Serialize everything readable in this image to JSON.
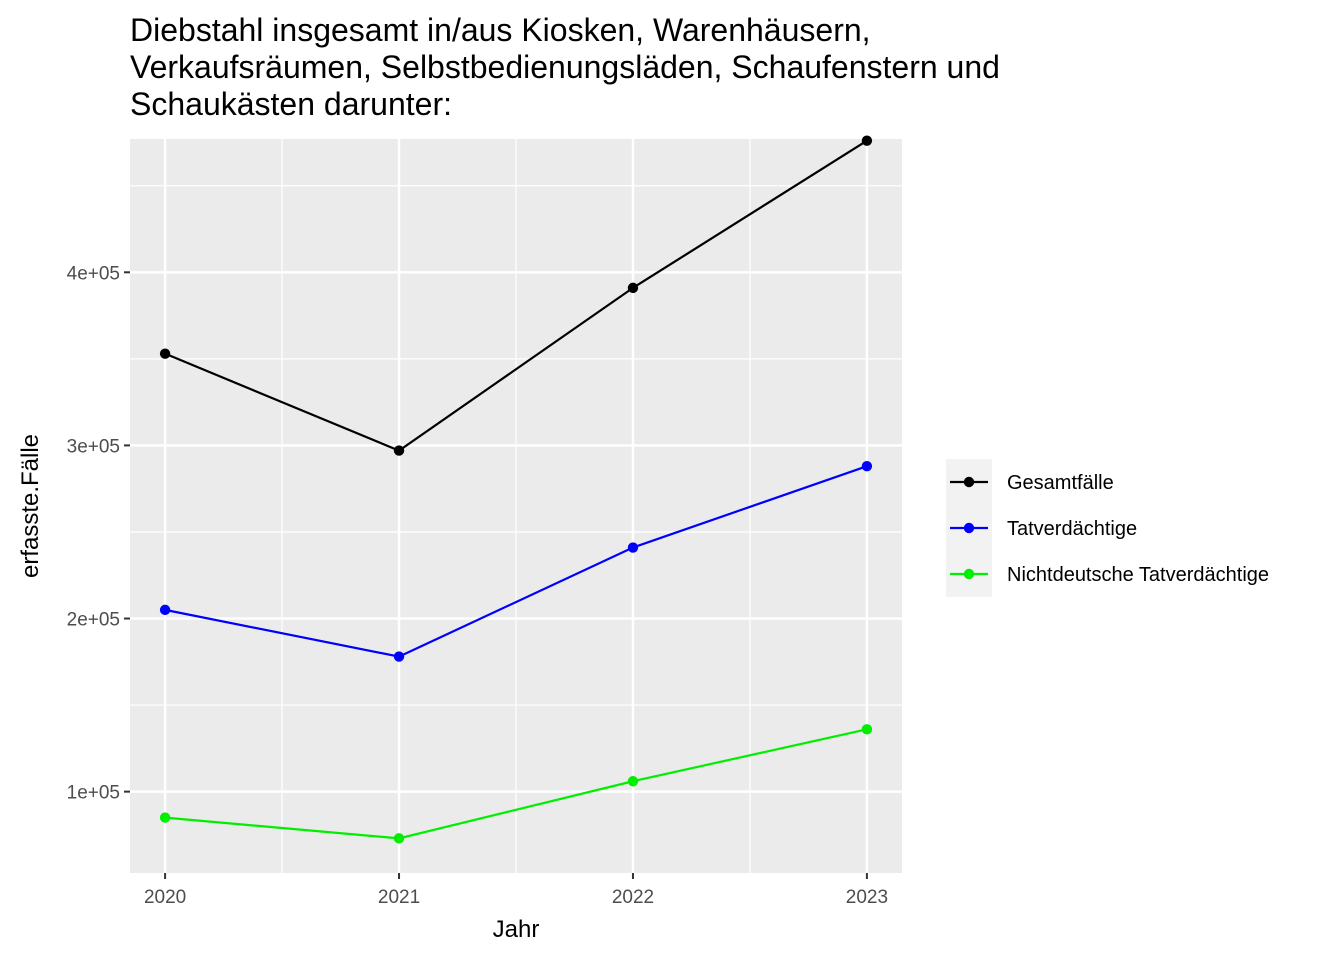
{
  "chart_data": {
    "type": "line",
    "title_lines": [
      "Diebstahl insgesamt in/aus Kiosken, Warenhäusern,",
      "Verkaufsräumen, Selbstbedienungsläden, Schaufenstern und",
      "Schaukästen darunter:"
    ],
    "xlabel": "Jahr",
    "ylabel": "erfasste.Fälle",
    "x": [
      2020,
      2021,
      2022,
      2023
    ],
    "x_tick_labels": [
      "2020",
      "2021",
      "2022",
      "2023"
    ],
    "y_ticks": [
      100000,
      200000,
      300000,
      400000
    ],
    "y_tick_labels": [
      "1e+05",
      "2e+05",
      "3e+05",
      "4e+05"
    ],
    "xlim": [
      2019.85,
      2023.15
    ],
    "ylim": [
      53000,
      477000
    ],
    "grid": true,
    "legend_position": "right",
    "series": [
      {
        "name": "Gesamtfälle",
        "color": "#000000",
        "values": [
          353000,
          297000,
          391000,
          476000
        ]
      },
      {
        "name": "Tatverdächtige",
        "color": "#0000ff",
        "values": [
          205000,
          178000,
          241000,
          288000
        ]
      },
      {
        "name": "Nichtdeutsche Tatverdächtige",
        "color": "#00ee00",
        "values": [
          85000,
          73000,
          106000,
          136000
        ]
      }
    ]
  }
}
